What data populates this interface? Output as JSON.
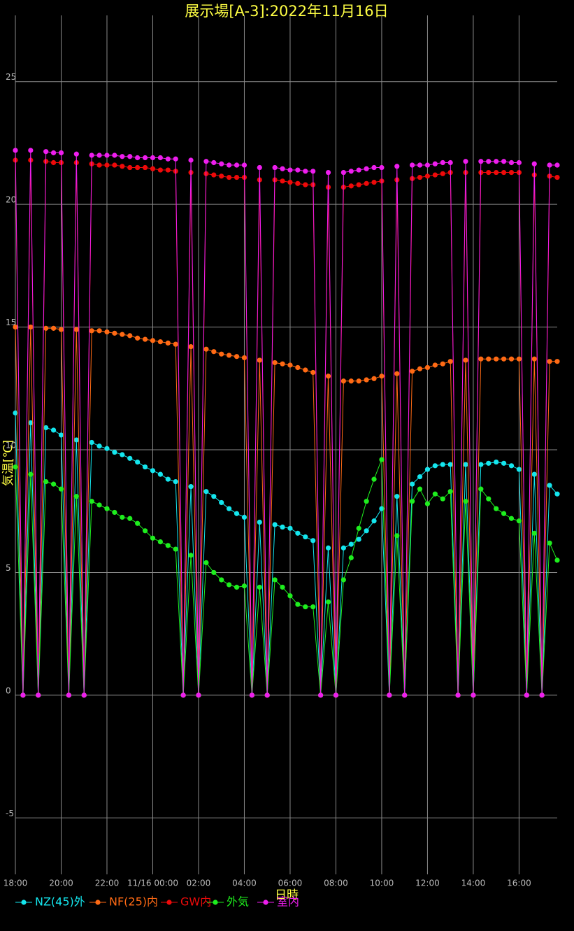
{
  "chart_data": {
    "type": "line",
    "title": "展示場[A-3]:2022年11月16日",
    "x_label": "日時",
    "y_label": "気温[℃]",
    "xlim": [
      -360,
      1060
    ],
    "ylim": [
      -7.3,
      27.7
    ],
    "xticks": [
      {
        "value": -360,
        "label": "18:00"
      },
      {
        "value": -240,
        "label": "20:00"
      },
      {
        "value": -120,
        "label": "22:00"
      },
      {
        "value": 0,
        "label": "11/16 00:00"
      },
      {
        "value": 120,
        "label": "02:00"
      },
      {
        "value": 240,
        "label": "04:00"
      },
      {
        "value": 360,
        "label": "06:00"
      },
      {
        "value": 480,
        "label": "08:00"
      },
      {
        "value": 600,
        "label": "10:00"
      },
      {
        "value": 720,
        "label": "12:00"
      },
      {
        "value": 840,
        "label": "14:00"
      },
      {
        "value": 960,
        "label": "16:00"
      }
    ],
    "yticks": [
      -5,
      0,
      5,
      10,
      15,
      20,
      25
    ],
    "grid": true,
    "legend": "bottom-left",
    "x": [
      -360,
      -340,
      -320,
      -300,
      -280,
      -260,
      -240,
      -220,
      -200,
      -180,
      -160,
      -140,
      -120,
      -100,
      -80,
      -60,
      -40,
      -20,
      0,
      20,
      40,
      60,
      80,
      100,
      120,
      140,
      160,
      180,
      200,
      220,
      240,
      260,
      280,
      300,
      320,
      340,
      360,
      380,
      400,
      420,
      440,
      460,
      480,
      500,
      520,
      540,
      560,
      580,
      600,
      620,
      640,
      660,
      680,
      700,
      720,
      740,
      760,
      780,
      800,
      820,
      840,
      860,
      880,
      900,
      920,
      940,
      960,
      980,
      1000,
      1020,
      1040,
      1060
    ],
    "series": [
      {
        "name": "NZ(45)外",
        "color": "#14e6ee",
        "values": [
          11.5,
          0,
          11.1,
          0,
          10.9,
          10.8,
          10.6,
          0,
          10.4,
          0,
          10.3,
          10.15,
          10.05,
          9.9,
          9.8,
          9.65,
          9.5,
          9.3,
          9.15,
          9.0,
          8.8,
          8.7,
          0,
          8.5,
          0,
          8.3,
          8.1,
          7.85,
          7.6,
          7.4,
          7.25,
          0,
          7.05,
          0,
          6.95,
          6.85,
          6.8,
          6.6,
          6.45,
          6.3,
          0,
          6.0,
          0,
          6.0,
          6.15,
          6.35,
          6.7,
          7.1,
          7.6,
          0,
          8.1,
          0,
          8.6,
          8.9,
          9.2,
          9.35,
          9.4,
          9.4,
          0,
          9.4,
          0,
          9.4,
          9.45,
          9.5,
          9.45,
          9.35,
          9.2,
          0,
          9.0,
          0,
          8.55,
          8.2
        ]
      },
      {
        "name": "NF(25)内",
        "color": "#ff6a14",
        "values": [
          15.0,
          0,
          15.0,
          0,
          14.95,
          14.95,
          14.9,
          0,
          14.9,
          0,
          14.85,
          14.85,
          14.8,
          14.75,
          14.7,
          14.65,
          14.55,
          14.5,
          14.45,
          14.4,
          14.35,
          14.3,
          0,
          14.2,
          0,
          14.1,
          14.0,
          13.9,
          13.85,
          13.8,
          13.75,
          0,
          13.65,
          0,
          13.55,
          13.5,
          13.45,
          13.35,
          13.25,
          13.15,
          0,
          13.0,
          0,
          12.8,
          12.8,
          12.8,
          12.85,
          12.9,
          13.0,
          0,
          13.1,
          0,
          13.2,
          13.3,
          13.35,
          13.45,
          13.5,
          13.6,
          0,
          13.65,
          0,
          13.7,
          13.7,
          13.7,
          13.7,
          13.7,
          13.7,
          0,
          13.7,
          0,
          13.6,
          13.6
        ]
      },
      {
        "name": "GW内",
        "color": "#ee0a0a",
        "values": [
          21.8,
          0,
          21.8,
          0,
          21.75,
          21.7,
          21.7,
          0,
          21.7,
          0,
          21.65,
          21.6,
          21.6,
          21.6,
          21.55,
          21.5,
          21.5,
          21.5,
          21.45,
          21.4,
          21.4,
          21.35,
          0,
          21.3,
          0,
          21.25,
          21.2,
          21.15,
          21.1,
          21.1,
          21.1,
          0,
          21.0,
          0,
          21.0,
          20.95,
          20.9,
          20.85,
          20.8,
          20.8,
          0,
          20.7,
          0,
          20.7,
          20.75,
          20.8,
          20.85,
          20.9,
          20.95,
          0,
          21.0,
          0,
          21.05,
          21.1,
          21.15,
          21.2,
          21.25,
          21.3,
          0,
          21.3,
          0,
          21.3,
          21.3,
          21.3,
          21.3,
          21.3,
          21.3,
          0,
          21.2,
          0,
          21.15,
          21.1
        ]
      },
      {
        "name": "外気",
        "color": "#1eee1e",
        "values": [
          9.3,
          0,
          9.0,
          0,
          8.7,
          8.6,
          8.4,
          0,
          8.1,
          0,
          7.9,
          7.75,
          7.6,
          7.45,
          7.25,
          7.2,
          7.0,
          6.7,
          6.4,
          6.25,
          6.1,
          5.95,
          0,
          5.7,
          0,
          5.4,
          5.0,
          4.7,
          4.5,
          4.4,
          4.45,
          0,
          4.4,
          0,
          4.7,
          4.4,
          4.05,
          3.7,
          3.6,
          3.6,
          0,
          3.8,
          0,
          4.7,
          5.6,
          6.8,
          7.9,
          8.8,
          9.6,
          0,
          6.5,
          0,
          7.9,
          8.4,
          7.8,
          8.2,
          8.0,
          8.3,
          0,
          7.9,
          0,
          8.4,
          8.0,
          7.6,
          7.4,
          7.2,
          7.1,
          0,
          6.6,
          0,
          6.2,
          5.5
        ]
      },
      {
        "name": "室内",
        "color": "#ee1eee",
        "values": [
          22.2,
          0,
          22.2,
          0,
          22.15,
          22.1,
          22.1,
          0,
          22.05,
          0,
          22.0,
          22.0,
          22.0,
          22.0,
          21.95,
          21.95,
          21.9,
          21.9,
          21.9,
          21.9,
          21.85,
          21.85,
          0,
          21.8,
          0,
          21.75,
          21.7,
          21.65,
          21.6,
          21.6,
          21.6,
          0,
          21.5,
          0,
          21.5,
          21.45,
          21.4,
          21.4,
          21.35,
          21.35,
          0,
          21.3,
          0,
          21.3,
          21.35,
          21.4,
          21.45,
          21.5,
          21.5,
          0,
          21.55,
          0,
          21.6,
          21.6,
          21.6,
          21.65,
          21.7,
          21.7,
          0,
          21.75,
          0,
          21.75,
          21.75,
          21.75,
          21.75,
          21.7,
          21.7,
          0,
          21.65,
          0,
          21.6,
          21.6
        ]
      }
    ]
  }
}
